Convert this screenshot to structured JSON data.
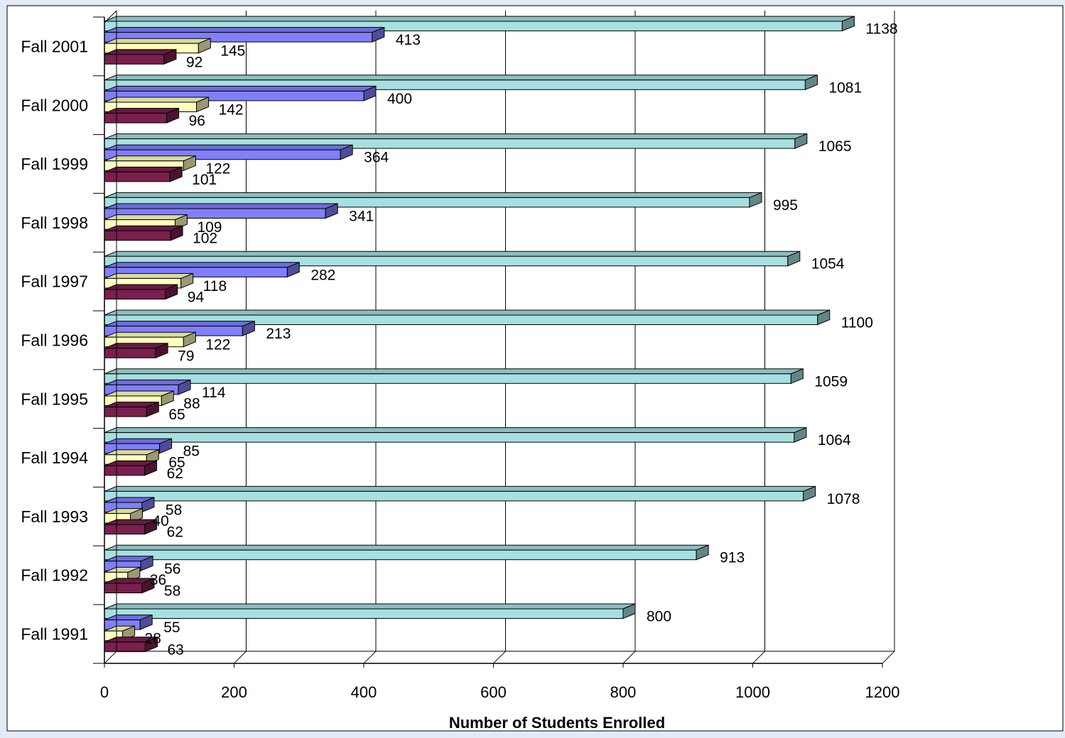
{
  "chart_data": {
    "type": "bar",
    "orientation": "horizontal",
    "categories": [
      "Fall 1991",
      "Fall 1992",
      "Fall 1993",
      "Fall 1994",
      "Fall 1995",
      "Fall 1996",
      "Fall 1997",
      "Fall 1998",
      "Fall 1999",
      "Fall 2000",
      "Fall 2001"
    ],
    "series": [
      {
        "values": [
          800,
          913,
          1078,
          1064,
          1059,
          1100,
          1054,
          995,
          1065,
          1081,
          1138
        ],
        "color": "#a6e0e0"
      },
      {
        "values": [
          55,
          56,
          58,
          85,
          114,
          213,
          282,
          341,
          364,
          400,
          413
        ],
        "color": "#8080ff"
      },
      {
        "values": [
          28,
          36,
          40,
          65,
          88,
          122,
          118,
          109,
          122,
          142,
          145
        ],
        "color": "#ffffc0"
      },
      {
        "values": [
          63,
          58,
          62,
          62,
          65,
          79,
          94,
          102,
          101,
          96,
          92
        ],
        "color": "#7a1f4e"
      }
    ],
    "xlim": [
      0,
      1200
    ],
    "xticks": [
      0,
      200,
      400,
      600,
      800,
      1000,
      1200
    ],
    "xlabel": "Number of Students Enrolled",
    "ylabel": "",
    "title": "",
    "grid": true,
    "legend": "none"
  }
}
